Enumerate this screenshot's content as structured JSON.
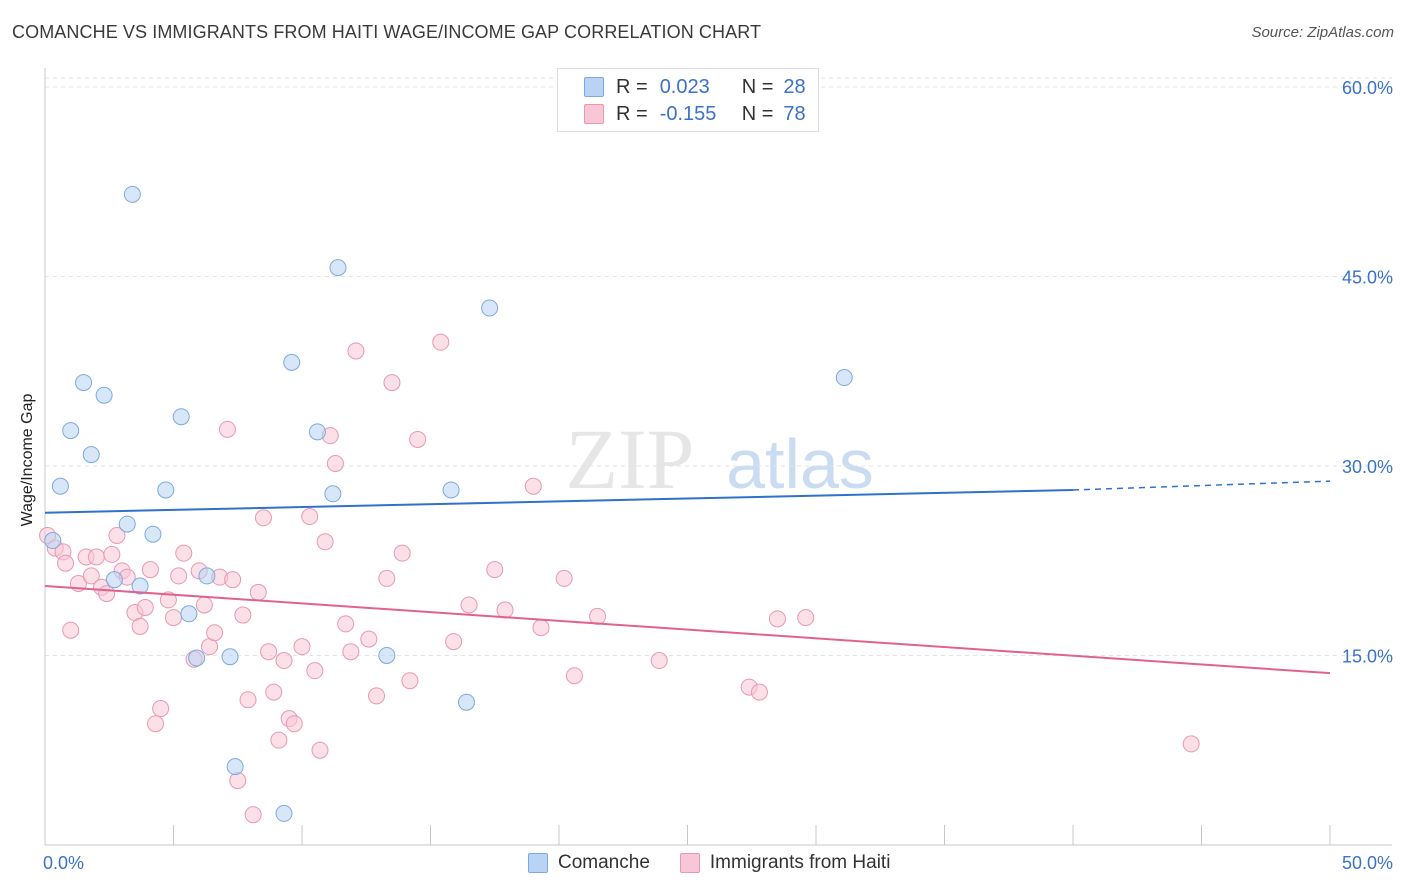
{
  "title": "COMANCHE VS IMMIGRANTS FROM HAITI WAGE/INCOME GAP CORRELATION CHART",
  "source": "Source: ZipAtlas.com",
  "watermark": {
    "zip": "ZIP",
    "atlas": "atlas"
  },
  "legend": {
    "rows": [
      {
        "r_label": "R =",
        "r_value": "0.023",
        "n_label": "N =",
        "n_value": "28",
        "color": "#b8d3f3"
      },
      {
        "r_label": "R =",
        "r_value": "-0.155",
        "n_label": "N =",
        "n_value": "78",
        "color": "#f9c6d6"
      }
    ]
  },
  "bottom_legend": [
    {
      "label": "Comanche",
      "color": "#b8d3f3"
    },
    {
      "label": "Immigrants from Haiti",
      "color": "#f9c6d6"
    }
  ],
  "chart_data": {
    "type": "scatter",
    "title": "COMANCHE VS IMMIGRANTS FROM HAITI WAGE/INCOME GAP CORRELATION CHART",
    "xlabel": "",
    "ylabel": "Wage/Income Gap",
    "xlim": [
      0,
      50
    ],
    "ylim": [
      0,
      61.5
    ],
    "x_tick_labels": [
      "0.0%",
      "50.0%"
    ],
    "y_ticks": [
      15,
      30,
      45,
      60
    ],
    "y_tick_labels": [
      "15.0%",
      "30.0%",
      "45.0%",
      "60.0%"
    ],
    "grid": true,
    "series": [
      {
        "name": "Comanche",
        "color": "#7ba9e0",
        "fill": "#b8d3f3",
        "trend": {
          "x1": 0,
          "y1": 26.3,
          "x2": 40,
          "y2": 28.1,
          "dash_to": 50,
          "dash_y": 28.8,
          "color": "#2f72c9"
        },
        "points": [
          [
            0.3,
            24.1
          ],
          [
            0.6,
            28.4
          ],
          [
            1.0,
            32.8
          ],
          [
            1.5,
            36.6
          ],
          [
            1.8,
            30.9
          ],
          [
            2.3,
            35.6
          ],
          [
            2.7,
            21.0
          ],
          [
            3.2,
            25.4
          ],
          [
            3.7,
            20.5
          ],
          [
            4.2,
            24.6
          ],
          [
            4.7,
            28.1
          ],
          [
            5.3,
            33.9
          ],
          [
            5.6,
            18.3
          ],
          [
            5.9,
            14.8
          ],
          [
            6.3,
            21.3
          ],
          [
            7.2,
            14.9
          ],
          [
            7.4,
            6.2
          ],
          [
            9.3,
            2.5
          ],
          [
            9.6,
            38.2
          ],
          [
            10.6,
            32.7
          ],
          [
            11.2,
            27.8
          ],
          [
            11.4,
            45.7
          ],
          [
            13.3,
            15.0
          ],
          [
            15.8,
            28.1
          ],
          [
            16.4,
            11.3
          ],
          [
            17.3,
            42.5
          ],
          [
            31.1,
            37.0
          ],
          [
            3.4,
            51.5
          ]
        ]
      },
      {
        "name": "Immigrants from Haiti",
        "color": "#e898b2",
        "fill": "#f9c6d6",
        "trend": {
          "x1": 0,
          "y1": 20.5,
          "x2": 50,
          "y2": 13.6,
          "color": "#e2628f"
        },
        "points": [
          [
            0.1,
            24.5
          ],
          [
            0.4,
            23.5
          ],
          [
            0.7,
            23.2
          ],
          [
            0.8,
            22.3
          ],
          [
            1.0,
            17.0
          ],
          [
            1.3,
            20.7
          ],
          [
            1.6,
            22.8
          ],
          [
            1.8,
            21.3
          ],
          [
            2.0,
            22.8
          ],
          [
            2.2,
            20.4
          ],
          [
            2.4,
            19.9
          ],
          [
            2.6,
            23.0
          ],
          [
            2.8,
            24.5
          ],
          [
            3.0,
            21.7
          ],
          [
            3.2,
            21.2
          ],
          [
            3.5,
            18.4
          ],
          [
            3.7,
            17.3
          ],
          [
            3.9,
            18.8
          ],
          [
            4.1,
            21.8
          ],
          [
            4.3,
            9.6
          ],
          [
            4.5,
            10.8
          ],
          [
            4.8,
            19.4
          ],
          [
            5.0,
            18.0
          ],
          [
            5.2,
            21.3
          ],
          [
            5.4,
            23.1
          ],
          [
            5.8,
            14.7
          ],
          [
            6.0,
            21.7
          ],
          [
            6.2,
            19.0
          ],
          [
            6.4,
            15.7
          ],
          [
            6.6,
            16.8
          ],
          [
            6.8,
            21.2
          ],
          [
            7.1,
            32.9
          ],
          [
            7.3,
            21.0
          ],
          [
            7.5,
            5.1
          ],
          [
            7.7,
            18.2
          ],
          [
            7.9,
            11.5
          ],
          [
            8.1,
            2.4
          ],
          [
            8.3,
            20.0
          ],
          [
            8.5,
            25.9
          ],
          [
            8.7,
            15.3
          ],
          [
            8.9,
            12.1
          ],
          [
            9.1,
            8.3
          ],
          [
            9.3,
            14.6
          ],
          [
            9.5,
            10.0
          ],
          [
            9.7,
            9.6
          ],
          [
            10.0,
            15.7
          ],
          [
            10.3,
            26.0
          ],
          [
            10.5,
            13.8
          ],
          [
            10.7,
            7.5
          ],
          [
            10.9,
            24.0
          ],
          [
            11.1,
            32.4
          ],
          [
            11.3,
            30.2
          ],
          [
            11.7,
            17.5
          ],
          [
            11.9,
            15.3
          ],
          [
            12.1,
            39.1
          ],
          [
            12.6,
            16.3
          ],
          [
            12.9,
            11.8
          ],
          [
            13.3,
            21.1
          ],
          [
            13.5,
            36.6
          ],
          [
            13.9,
            23.1
          ],
          [
            14.2,
            13.0
          ],
          [
            14.5,
            32.1
          ],
          [
            15.4,
            39.8
          ],
          [
            15.9,
            16.1
          ],
          [
            16.5,
            19.0
          ],
          [
            17.5,
            21.8
          ],
          [
            17.9,
            18.6
          ],
          [
            19.0,
            28.4
          ],
          [
            19.3,
            17.2
          ],
          [
            20.2,
            21.1
          ],
          [
            20.6,
            13.4
          ],
          [
            21.5,
            18.1
          ],
          [
            23.9,
            14.6
          ],
          [
            27.4,
            12.5
          ],
          [
            27.8,
            12.1
          ],
          [
            28.5,
            17.9
          ],
          [
            29.6,
            18.0
          ],
          [
            44.6,
            8.0
          ]
        ]
      }
    ]
  }
}
